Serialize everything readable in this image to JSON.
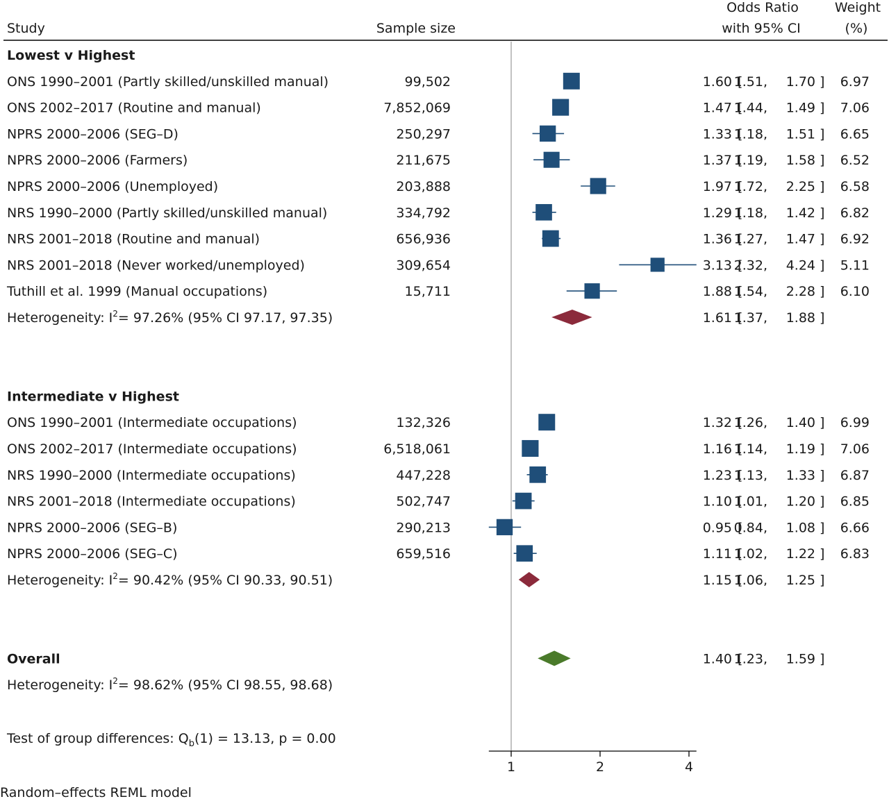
{
  "header": {
    "study": "Study",
    "sample_size": "Sample size",
    "or_line1": "Odds Ratio",
    "or_line2": "with 95% CI",
    "weight_line1": "Weight",
    "weight_line2": "(%)"
  },
  "chart_data": {
    "type": "forest",
    "x_scale": "log",
    "x_ticks": [
      "1",
      "2",
      "4"
    ],
    "x_tick_values": [
      1,
      2,
      4
    ],
    "xlim": [
      0.84,
      4.24
    ],
    "reference_line": 1,
    "colors": {
      "study_marker": "#1f4e79",
      "subgroup_summary": "#8b2a3b",
      "overall_summary": "#4a7a2a",
      "reference_line": "#999999",
      "rule": "#000000"
    },
    "groups": [
      {
        "label": "Lowest v Highest",
        "studies": [
          {
            "study": "ONS 1990–2001 (Partly skilled/unskilled manual)",
            "n": "99,502",
            "or": 1.6,
            "lo": 1.51,
            "hi": 1.7,
            "weight": 6.97,
            "or_text": "1.60",
            "lo_text": "1.51",
            "hi_text": "1.70",
            "weight_text": "6.97"
          },
          {
            "study": "ONS 2002–2017 (Routine and manual)",
            "n": "7,852,069",
            "or": 1.47,
            "lo": 1.44,
            "hi": 1.49,
            "weight": 7.06,
            "or_text": "1.47",
            "lo_text": "1.44",
            "hi_text": "1.49",
            "weight_text": "7.06"
          },
          {
            "study": "NPRS 2000–2006 (SEG–D)",
            "n": "250,297",
            "or": 1.33,
            "lo": 1.18,
            "hi": 1.51,
            "weight": 6.65,
            "or_text": "1.33",
            "lo_text": "1.18",
            "hi_text": "1.51",
            "weight_text": "6.65"
          },
          {
            "study": "NPRS 2000–2006 (Farmers)",
            "n": "211,675",
            "or": 1.37,
            "lo": 1.19,
            "hi": 1.58,
            "weight": 6.52,
            "or_text": "1.37",
            "lo_text": "1.19",
            "hi_text": "1.58",
            "weight_text": "6.52"
          },
          {
            "study": "NPRS 2000–2006 (Unemployed)",
            "n": "203,888",
            "or": 1.97,
            "lo": 1.72,
            "hi": 2.25,
            "weight": 6.58,
            "or_text": "1.97",
            "lo_text": "1.72",
            "hi_text": "2.25",
            "weight_text": "6.58"
          },
          {
            "study": "NRS 1990–2000 (Partly skilled/unskilled manual)",
            "n": "334,792",
            "or": 1.29,
            "lo": 1.18,
            "hi": 1.42,
            "weight": 6.82,
            "or_text": "1.29",
            "lo_text": "1.18",
            "hi_text": "1.42",
            "weight_text": "6.82"
          },
          {
            "study": "NRS 2001–2018 (Routine and manual)",
            "n": "656,936",
            "or": 1.36,
            "lo": 1.27,
            "hi": 1.47,
            "weight": 6.92,
            "or_text": "1.36",
            "lo_text": "1.27",
            "hi_text": "1.47",
            "weight_text": "6.92"
          },
          {
            "study": "NRS 2001–2018 (Never worked/unemployed)",
            "n": "309,654",
            "or": 3.13,
            "lo": 2.32,
            "hi": 4.24,
            "weight": 5.11,
            "or_text": "3.13",
            "lo_text": "2.32",
            "hi_text": "4.24",
            "weight_text": "5.11"
          },
          {
            "study": "Tuthill et al. 1999 (Manual occupations)",
            "n": "15,711",
            "or": 1.88,
            "lo": 1.54,
            "hi": 2.28,
            "weight": 6.1,
            "or_text": "1.88",
            "lo_text": "1.54",
            "hi_text": "2.28",
            "weight_text": "6.10"
          }
        ],
        "summary": {
          "het_prefix": "Heterogeneity: I",
          "het_sup": "2",
          "het_rest": "= 97.26% (95% CI 97.17, 97.35)",
          "or": 1.61,
          "lo": 1.37,
          "hi": 1.88,
          "or_text": "1.61",
          "lo_text": "1.37",
          "hi_text": "1.88"
        }
      },
      {
        "label": "Intermediate v Highest",
        "studies": [
          {
            "study": "ONS 1990–2001 (Intermediate occupations)",
            "n": "132,326",
            "or": 1.32,
            "lo": 1.26,
            "hi": 1.4,
            "weight": 6.99,
            "or_text": "1.32",
            "lo_text": "1.26",
            "hi_text": "1.40",
            "weight_text": "6.99"
          },
          {
            "study": "ONS 2002–2017 (Intermediate occupations)",
            "n": "6,518,061",
            "or": 1.16,
            "lo": 1.14,
            "hi": 1.19,
            "weight": 7.06,
            "or_text": "1.16",
            "lo_text": "1.14",
            "hi_text": "1.19",
            "weight_text": "7.06"
          },
          {
            "study": "NRS 1990–2000 (Intermediate occupations)",
            "n": "447,228",
            "or": 1.23,
            "lo": 1.13,
            "hi": 1.33,
            "weight": 6.87,
            "or_text": "1.23",
            "lo_text": "1.13",
            "hi_text": "1.33",
            "weight_text": "6.87"
          },
          {
            "study": "NRS 2001–2018 (Intermediate occupations)",
            "n": "502,747",
            "or": 1.1,
            "lo": 1.01,
            "hi": 1.2,
            "weight": 6.85,
            "or_text": "1.10",
            "lo_text": "1.01",
            "hi_text": "1.20",
            "weight_text": "6.85"
          },
          {
            "study": "NPRS 2000–2006 (SEG–B)",
            "n": "290,213",
            "or": 0.95,
            "lo": 0.84,
            "hi": 1.08,
            "weight": 6.66,
            "or_text": "0.95",
            "lo_text": "0.84",
            "hi_text": "1.08",
            "weight_text": "6.66"
          },
          {
            "study": "NPRS 2000–2006 (SEG–C)",
            "n": "659,516",
            "or": 1.11,
            "lo": 1.02,
            "hi": 1.22,
            "weight": 6.83,
            "or_text": "1.11",
            "lo_text": "1.02",
            "hi_text": "1.22",
            "weight_text": "6.83"
          }
        ],
        "summary": {
          "het_prefix": "Heterogeneity: I",
          "het_sup": "2",
          "het_rest": "= 90.42% (95% CI 90.33, 90.51)",
          "or": 1.15,
          "lo": 1.06,
          "hi": 1.25,
          "or_text": "1.15",
          "lo_text": "1.06",
          "hi_text": "1.25"
        }
      }
    ],
    "overall": {
      "label": "Overall",
      "or": 1.4,
      "lo": 1.23,
      "hi": 1.59,
      "or_text": "1.40",
      "lo_text": "1.23",
      "hi_text": "1.59",
      "het_prefix": "Heterogeneity: I",
      "het_sup": "2",
      "het_rest": "= 98.62% (95% CI 98.55, 98.68)"
    },
    "group_test": {
      "prefix": "Test of group differences: Q",
      "sub": "b",
      "rest": "(1) = 13.13, p = 0.00"
    },
    "footnote": "Random–effects REML model"
  }
}
